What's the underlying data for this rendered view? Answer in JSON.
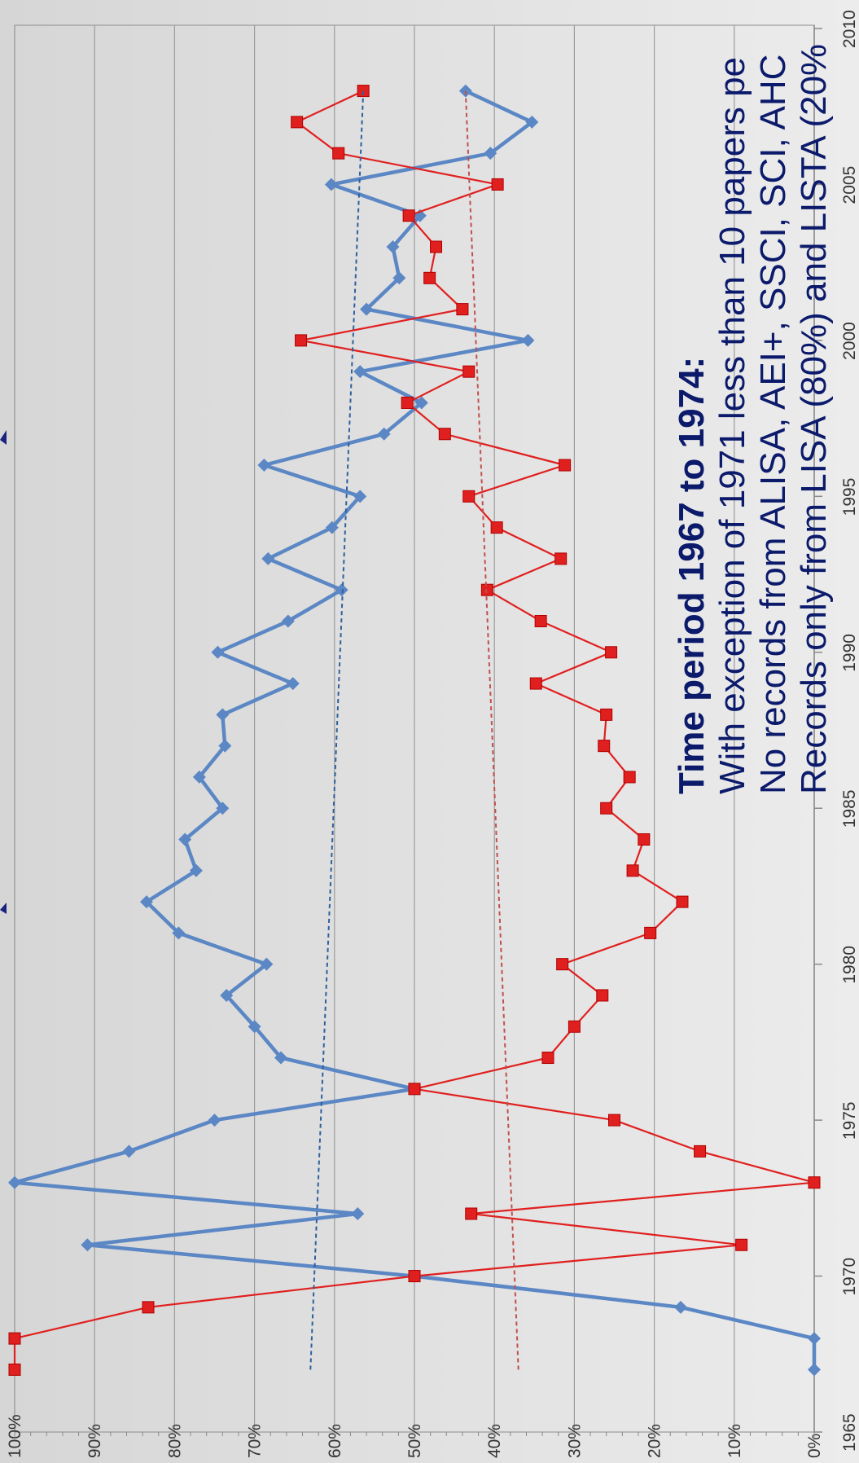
{
  "chart_data": {
    "type": "line",
    "orientation": "rotated-90-ccw",
    "x_ticks": [
      1965,
      1970,
      1975,
      1980,
      1985,
      1990,
      1995,
      2000,
      2005,
      2010
    ],
    "y_ticks": [
      "0%",
      "10%",
      "20%",
      "30%",
      "40%",
      "50%",
      "60%",
      "70%",
      "80%",
      "90%",
      "100%"
    ],
    "xlim": [
      1965,
      2010
    ],
    "ylim": [
      0,
      100
    ],
    "grid": true,
    "legend": "none",
    "series": [
      {
        "color": "#5b87c5",
        "marker": "diamond",
        "x": [
          1967,
          1968,
          1969,
          1970,
          1971,
          1972,
          1973,
          1974,
          1975,
          1976,
          1977,
          1978,
          1979,
          1980,
          1981,
          1982,
          1983,
          1984,
          1985,
          1986,
          1987,
          1988,
          1989,
          1990,
          1991,
          1992,
          1993,
          1994,
          1995,
          1996,
          1997,
          1998,
          1999,
          2000,
          2001,
          2002,
          2003,
          2004,
          2005,
          2006,
          2007,
          2008
        ],
        "y": [
          0,
          0,
          16.7,
          50,
          90.9,
          57.1,
          100,
          85.7,
          75,
          50,
          66.7,
          70,
          73.5,
          68.5,
          79.5,
          83.5,
          77.3,
          78.7,
          74,
          76.9,
          73.7,
          74,
          65.2,
          74.6,
          65.8,
          59.1,
          68.3,
          60.3,
          56.8,
          68.8,
          53.8,
          49.1,
          56.8,
          35.8,
          56,
          51.9,
          52.7,
          49.3,
          60.4,
          40.5,
          35.3,
          43.6
        ]
      },
      {
        "color": "#e0201f",
        "marker": "square",
        "x": [
          1967,
          1968,
          1969,
          1970,
          1971,
          1972,
          1973,
          1974,
          1975,
          1976,
          1977,
          1978,
          1979,
          1980,
          1981,
          1982,
          1983,
          1984,
          1985,
          1986,
          1987,
          1988,
          1989,
          1990,
          1991,
          1992,
          1993,
          1994,
          1995,
          1996,
          1997,
          1998,
          1999,
          2000,
          2001,
          2002,
          2003,
          2004,
          2005,
          2006,
          2007,
          2008
        ],
        "y": [
          100,
          100,
          83.3,
          50,
          9.1,
          42.9,
          0,
          14.3,
          25,
          50,
          33.3,
          30,
          26.5,
          31.5,
          20.5,
          16.5,
          22.7,
          21.3,
          26,
          23.1,
          26.3,
          26,
          34.8,
          25.4,
          34.2,
          40.9,
          31.7,
          39.7,
          43.2,
          31.2,
          46.2,
          50.9,
          43.2,
          64.2,
          44,
          48.1,
          47.3,
          50.7,
          39.6,
          59.5,
          64.7,
          56.4
        ]
      },
      {
        "color": "#2e5f9e",
        "marker": "none",
        "dashed": true,
        "x": [
          1967,
          2008
        ],
        "y": [
          63,
          56.4
        ]
      },
      {
        "color": "#c0504d",
        "marker": "none",
        "dashed": true,
        "x": [
          1967,
          2008
        ],
        "y": [
          37,
          43.6
        ]
      }
    ]
  },
  "annotation": {
    "title": "Time period 1967 to 1974:",
    "line1": "With exception of 1971 less than 10 papers pe",
    "line2": "No records from ALISA, AEI+, SSCI, SCI, AHC",
    "line3": "Records only from LISA (80%) and LISTA (20%"
  }
}
